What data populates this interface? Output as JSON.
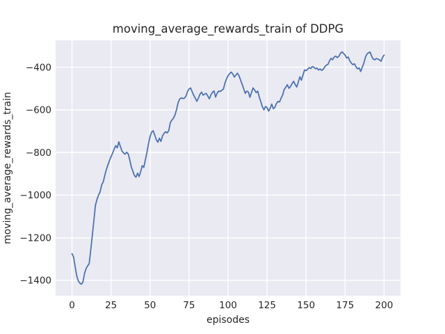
{
  "figure": {
    "title": "moving_average_rewards_train of DDPG",
    "xlabel": "episodes",
    "ylabel": "moving_average_rewards_train"
  },
  "chart_data": {
    "type": "line",
    "title": "moving_average_rewards_train of DDPG",
    "xlabel": "episodes",
    "ylabel": "moving_average_rewards_train",
    "grid": true,
    "legend": false,
    "xlim": [
      -10.5,
      210.5
    ],
    "ylim": [
      -1472,
      -274
    ],
    "xticks": [
      0,
      25,
      50,
      75,
      100,
      125,
      150,
      175,
      200
    ],
    "yticks": [
      -1400,
      -1200,
      -1000,
      -800,
      -600,
      -400
    ],
    "style": {
      "figure_background": "#FFFFFF",
      "axes_background": "#EAEAF2",
      "grid_color": "#FFFFFF",
      "line_color": "#4C72B0",
      "text_color": "#262626"
    },
    "series": [
      {
        "name": "moving_average_rewards_train",
        "x_start": 0,
        "x_end": 200,
        "x_step": 1,
        "y": [
          -1275,
          -1290,
          -1335,
          -1378,
          -1402,
          -1413,
          -1418,
          -1408,
          -1368,
          -1345,
          -1332,
          -1322,
          -1258,
          -1190,
          -1120,
          -1048,
          -1020,
          -1000,
          -985,
          -952,
          -938,
          -908,
          -880,
          -858,
          -838,
          -820,
          -803,
          -785,
          -768,
          -778,
          -750,
          -772,
          -793,
          -802,
          -808,
          -799,
          -806,
          -835,
          -868,
          -888,
          -908,
          -916,
          -897,
          -913,
          -890,
          -862,
          -870,
          -835,
          -800,
          -760,
          -725,
          -705,
          -698,
          -718,
          -740,
          -752,
          -733,
          -748,
          -722,
          -710,
          -703,
          -708,
          -697,
          -660,
          -648,
          -639,
          -624,
          -598,
          -566,
          -549,
          -544,
          -547,
          -545,
          -536,
          -515,
          -502,
          -497,
          -515,
          -532,
          -545,
          -560,
          -545,
          -527,
          -517,
          -531,
          -526,
          -523,
          -535,
          -548,
          -530,
          -518,
          -511,
          -540,
          -522,
          -512,
          -514,
          -508,
          -503,
          -475,
          -455,
          -440,
          -430,
          -423,
          -431,
          -446,
          -437,
          -428,
          -440,
          -460,
          -480,
          -500,
          -523,
          -512,
          -516,
          -541,
          -519,
          -497,
          -507,
          -519,
          -512,
          -540,
          -562,
          -586,
          -600,
          -584,
          -590,
          -606,
          -592,
          -573,
          -595,
          -588,
          -570,
          -561,
          -563,
          -545,
          -530,
          -504,
          -494,
          -482,
          -499,
          -491,
          -477,
          -466,
          -481,
          -493,
          -470,
          -445,
          -461,
          -437,
          -413,
          -416,
          -409,
          -402,
          -406,
          -397,
          -400,
          -407,
          -404,
          -413,
          -408,
          -415,
          -410,
          -398,
          -390,
          -387,
          -370,
          -358,
          -365,
          -352,
          -348,
          -355,
          -349,
          -335,
          -328,
          -335,
          -343,
          -357,
          -352,
          -370,
          -381,
          -388,
          -384,
          -398,
          -408,
          -403,
          -420,
          -400,
          -381,
          -354,
          -338,
          -332,
          -329,
          -348,
          -362,
          -365,
          -359,
          -362,
          -365,
          -372,
          -354,
          -343
        ]
      }
    ]
  }
}
